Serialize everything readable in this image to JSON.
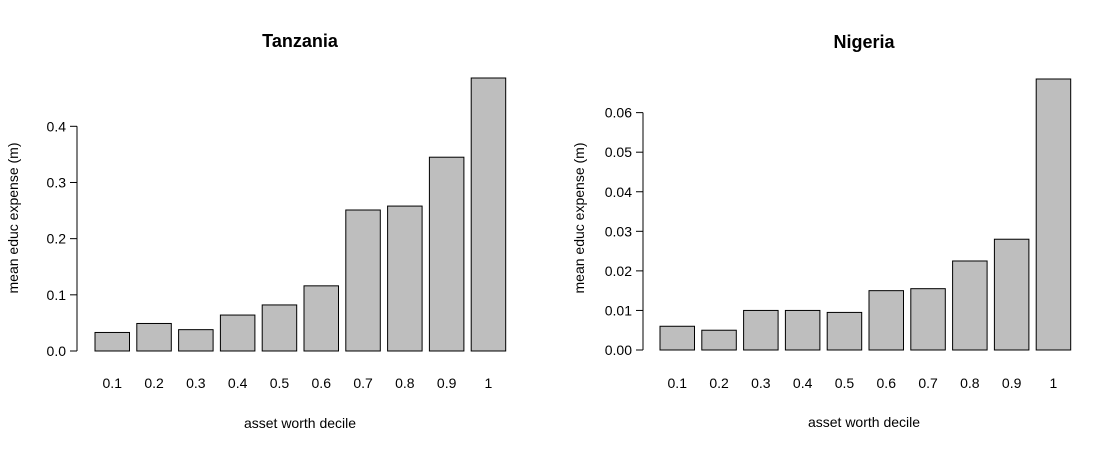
{
  "chart_data": [
    {
      "type": "bar",
      "title": "Tanzania",
      "xlabel": "asset worth decile",
      "ylabel": "mean educ expense (m)",
      "categories": [
        "0.1",
        "0.2",
        "0.3",
        "0.4",
        "0.5",
        "0.6",
        "0.7",
        "0.8",
        "0.9",
        "1"
      ],
      "values": [
        0.033,
        0.049,
        0.038,
        0.064,
        0.082,
        0.116,
        0.251,
        0.258,
        0.345,
        0.486
      ],
      "ylim": [
        0,
        0.486
      ],
      "yticks": [
        "0.0",
        "0.1",
        "0.2",
        "0.3",
        "0.4"
      ],
      "ytick_values": [
        0,
        0.1,
        0.2,
        0.3,
        0.4
      ],
      "bar_color": "#bebebe",
      "grid": false,
      "legend": "none"
    },
    {
      "type": "bar",
      "title": "Nigeria",
      "xlabel": "asset worth decile",
      "ylabel": "mean educ expense (m)",
      "categories": [
        "0.1",
        "0.2",
        "0.3",
        "0.4",
        "0.5",
        "0.6",
        "0.7",
        "0.8",
        "0.9",
        "1"
      ],
      "values": [
        0.006,
        0.005,
        0.01,
        0.01,
        0.0095,
        0.015,
        0.0155,
        0.0225,
        0.028,
        0.0685
      ],
      "ylim": [
        0,
        0.0685
      ],
      "yticks": [
        "0.00",
        "0.01",
        "0.02",
        "0.03",
        "0.04",
        "0.05",
        "0.06"
      ],
      "ytick_values": [
        0,
        0.01,
        0.02,
        0.03,
        0.04,
        0.05,
        0.06
      ],
      "bar_color": "#bebebe",
      "grid": false,
      "legend": "none"
    }
  ]
}
